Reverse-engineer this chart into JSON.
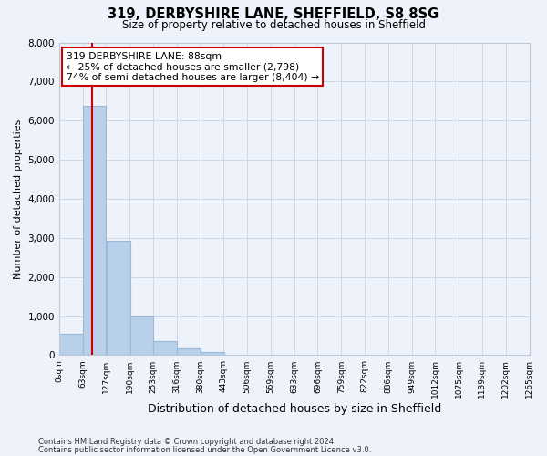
{
  "title_line1": "319, DERBYSHIRE LANE, SHEFFIELD, S8 8SG",
  "title_line2": "Size of property relative to detached houses in Sheffield",
  "xlabel": "Distribution of detached houses by size in Sheffield",
  "ylabel": "Number of detached properties",
  "bar_left_edges": [
    0,
    63,
    127,
    190,
    253,
    316,
    380,
    443,
    506,
    569,
    633,
    696,
    759,
    822,
    886,
    949,
    1012,
    1075,
    1139,
    1202
  ],
  "bar_heights": [
    550,
    6380,
    2930,
    985,
    370,
    175,
    90,
    0,
    0,
    0,
    0,
    0,
    0,
    0,
    0,
    0,
    0,
    0,
    0,
    0
  ],
  "bin_width": 63,
  "bar_color": "#b8d0ea",
  "bar_edge_color": "#9ab8d8",
  "property_size_sqm": 88,
  "property_line_color": "#cc0000",
  "annotation_line1": "319 DERBYSHIRE LANE: 88sqm",
  "annotation_line2": "← 25% of detached houses are smaller (2,798)",
  "annotation_line3": "74% of semi-detached houses are larger (8,404) →",
  "ylim": [
    0,
    8000
  ],
  "yticks": [
    0,
    1000,
    2000,
    3000,
    4000,
    5000,
    6000,
    7000,
    8000
  ],
  "xtick_labels": [
    "0sqm",
    "63sqm",
    "127sqm",
    "190sqm",
    "253sqm",
    "316sqm",
    "380sqm",
    "443sqm",
    "506sqm",
    "569sqm",
    "633sqm",
    "696sqm",
    "759sqm",
    "822sqm",
    "886sqm",
    "949sqm",
    "1012sqm",
    "1075sqm",
    "1139sqm",
    "1202sqm",
    "1265sqm"
  ],
  "grid_color": "#d0d8e8",
  "background_color": "#eef2fa",
  "footer_line1": "Contains HM Land Registry data © Crown copyright and database right 2024.",
  "footer_line2": "Contains public sector information licensed under the Open Government Licence v3.0."
}
